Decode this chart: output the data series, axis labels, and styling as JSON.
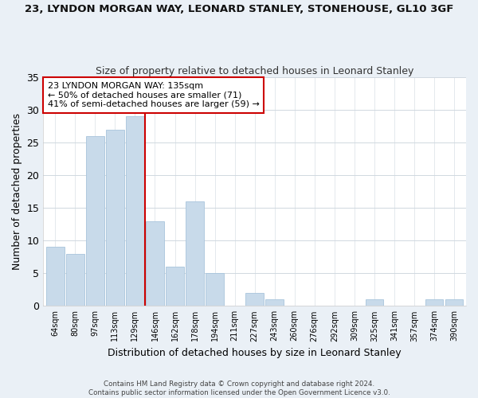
{
  "title": "23, LYNDON MORGAN WAY, LEONARD STANLEY, STONEHOUSE, GL10 3GF",
  "subtitle": "Size of property relative to detached houses in Leonard Stanley",
  "xlabel": "Distribution of detached houses by size in Leonard Stanley",
  "ylabel": "Number of detached properties",
  "bar_color": "#c8daea",
  "bar_edge_color": "#a8c4dc",
  "highlight_color": "#cc0000",
  "bins": [
    "64sqm",
    "80sqm",
    "97sqm",
    "113sqm",
    "129sqm",
    "146sqm",
    "162sqm",
    "178sqm",
    "194sqm",
    "211sqm",
    "227sqm",
    "243sqm",
    "260sqm",
    "276sqm",
    "292sqm",
    "309sqm",
    "325sqm",
    "341sqm",
    "357sqm",
    "374sqm",
    "390sqm"
  ],
  "values": [
    9,
    8,
    26,
    27,
    29,
    13,
    6,
    16,
    5,
    0,
    2,
    1,
    0,
    0,
    0,
    0,
    1,
    0,
    0,
    1,
    1
  ],
  "highlight_bin_index": 4,
  "annotation_line1": "23 LYNDON MORGAN WAY: 135sqm",
  "annotation_line2": "← 50% of detached houses are smaller (71)",
  "annotation_line3": "41% of semi-detached houses are larger (59) →",
  "ylim": [
    0,
    35
  ],
  "yticks": [
    0,
    5,
    10,
    15,
    20,
    25,
    30,
    35
  ],
  "footer_line1": "Contains HM Land Registry data © Crown copyright and database right 2024.",
  "footer_line2": "Contains public sector information licensed under the Open Government Licence v3.0.",
  "background_color": "#eaf0f6",
  "plot_bg_color": "#ffffff"
}
